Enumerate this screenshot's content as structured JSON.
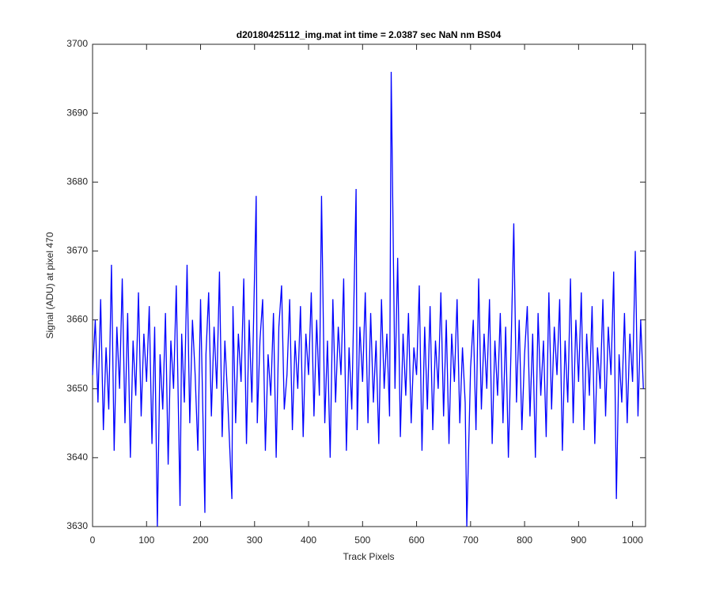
{
  "chart_data": {
    "type": "line",
    "title": "d20180425112_img.mat int time = 2.0387 sec  NaN nm BS04",
    "x_label": "Track Pixels",
    "y_label": "Signal (ADU) at pixel 470",
    "x": [
      0,
      5,
      10,
      15,
      20,
      25,
      30,
      35,
      40,
      45,
      50,
      55,
      60,
      65,
      70,
      75,
      80,
      85,
      90,
      95,
      100,
      105,
      110,
      115,
      120,
      125,
      130,
      135,
      140,
      145,
      150,
      155,
      162,
      165,
      170,
      175,
      180,
      185,
      190,
      195,
      200,
      208,
      210,
      215,
      220,
      225,
      230,
      235,
      240,
      245,
      250,
      258,
      260,
      265,
      270,
      275,
      280,
      285,
      290,
      295,
      303,
      305,
      310,
      315,
      320,
      325,
      330,
      335,
      340,
      345,
      350,
      355,
      360,
      365,
      370,
      375,
      380,
      385,
      390,
      395,
      400,
      405,
      410,
      415,
      420,
      424,
      430,
      435,
      440,
      445,
      450,
      455,
      460,
      465,
      470,
      475,
      480,
      488,
      490,
      495,
      500,
      505,
      510,
      515,
      520,
      525,
      530,
      535,
      540,
      545,
      550,
      553,
      560,
      565,
      570,
      575,
      580,
      585,
      590,
      595,
      600,
      605,
      610,
      615,
      620,
      625,
      630,
      635,
      640,
      645,
      650,
      655,
      660,
      665,
      670,
      675,
      680,
      685,
      690,
      693,
      700,
      705,
      710,
      715,
      720,
      725,
      730,
      735,
      740,
      745,
      750,
      755,
      760,
      765,
      770,
      775,
      780,
      785,
      790,
      795,
      800,
      805,
      810,
      815,
      820,
      825,
      830,
      835,
      840,
      845,
      850,
      855,
      860,
      865,
      870,
      875,
      880,
      885,
      890,
      895,
      900,
      905,
      910,
      915,
      920,
      925,
      930,
      935,
      940,
      945,
      950,
      955,
      960,
      965,
      970,
      975,
      980,
      985,
      990,
      995,
      1000,
      1005,
      1010,
      1015,
      1020
    ],
    "series": [
      {
        "name": "Signal",
        "color": "#0000ff",
        "values": [
          3652,
          3660,
          3648,
          3663,
          3644,
          3656,
          3647,
          3668,
          3641,
          3659,
          3650,
          3666,
          3645,
          3661,
          3640,
          3657,
          3649,
          3664,
          3646,
          3658,
          3651,
          3662,
          3642,
          3659,
          3630,
          3655,
          3647,
          3661,
          3639,
          3657,
          3650,
          3665,
          3633,
          3658,
          3648,
          3668,
          3645,
          3660,
          3652,
          3641,
          3663,
          3632,
          3655,
          3664,
          3646,
          3659,
          3650,
          3667,
          3643,
          3657,
          3649,
          3634,
          3662,
          3645,
          3658,
          3651,
          3666,
          3642,
          3660,
          3648,
          3678,
          3645,
          3657,
          3663,
          3641,
          3655,
          3649,
          3661,
          3640,
          3659,
          3665,
          3647,
          3652,
          3663,
          3644,
          3657,
          3650,
          3662,
          3643,
          3658,
          3652,
          3664,
          3646,
          3660,
          3649,
          3678,
          3645,
          3657,
          3640,
          3663,
          3648,
          3659,
          3652,
          3666,
          3641,
          3656,
          3647,
          3679,
          3644,
          3659,
          3651,
          3664,
          3645,
          3661,
          3648,
          3657,
          3642,
          3663,
          3650,
          3658,
          3646,
          3696,
          3650,
          3669,
          3643,
          3658,
          3649,
          3661,
          3645,
          3656,
          3652,
          3665,
          3641,
          3659,
          3647,
          3662,
          3644,
          3657,
          3650,
          3664,
          3646,
          3660,
          3642,
          3658,
          3651,
          3663,
          3645,
          3656,
          3648,
          3630,
          3653,
          3660,
          3644,
          3666,
          3647,
          3658,
          3650,
          3663,
          3642,
          3657,
          3649,
          3661,
          3645,
          3659,
          3640,
          3656,
          3674,
          3648,
          3660,
          3644,
          3655,
          3662,
          3646,
          3658,
          3640,
          3661,
          3649,
          3657,
          3643,
          3664,
          3647,
          3659,
          3652,
          3663,
          3641,
          3657,
          3648,
          3666,
          3645,
          3660,
          3651,
          3664,
          3644,
          3658,
          3649,
          3662,
          3642,
          3656,
          3650,
          3663,
          3646,
          3659,
          3652,
          3667,
          3634,
          3655,
          3648,
          3661,
          3645,
          3658,
          3651,
          3670,
          3646,
          3660,
          3650
        ]
      }
    ],
    "xlim": [
      0,
      1024
    ],
    "ylim": [
      3630,
      3700
    ],
    "xticks": [
      0,
      100,
      200,
      300,
      400,
      500,
      600,
      700,
      800,
      900,
      1000
    ],
    "yticks": [
      3630,
      3640,
      3650,
      3660,
      3670,
      3680,
      3690,
      3700
    ]
  }
}
